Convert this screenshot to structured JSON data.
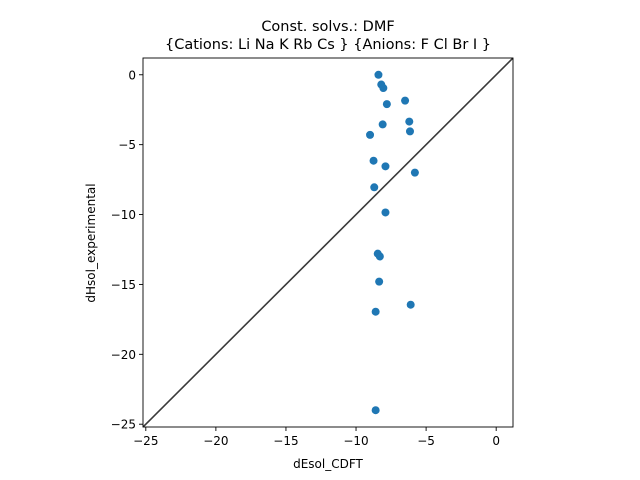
{
  "chart_data": {
    "type": "scatter",
    "title": "Const. solvs.: DMF",
    "subtitle": "{Cations: Li Na K Rb Cs } {Anions: F Cl Br I }",
    "xlabel": "dEsol_CDFT",
    "ylabel": "dHsol_experimental",
    "xlim": [
      -25.2,
      1.2
    ],
    "ylim": [
      -25.2,
      1.2
    ],
    "xticks": [
      -25,
      -20,
      -15,
      -10,
      -5,
      0
    ],
    "yticks": [
      0,
      -5,
      -10,
      -15,
      -20,
      -25
    ],
    "xtick_labels": [
      "−25",
      "−20",
      "−15",
      "−10",
      "−5",
      "0"
    ],
    "ytick_labels": [
      "0",
      "−5",
      "−10",
      "−15",
      "−20",
      "−25"
    ],
    "grid": false,
    "diagonal_line": {
      "from": [
        -25.2,
        -25.2
      ],
      "to": [
        1.2,
        1.2
      ],
      "color": "#3a3a3a"
    },
    "marker_color": "#1f77b4",
    "points": [
      {
        "x": -8.4,
        "y": 0.0
      },
      {
        "x": -8.2,
        "y": -0.7
      },
      {
        "x": -8.05,
        "y": -0.95
      },
      {
        "x": -7.8,
        "y": -2.1
      },
      {
        "x": -6.5,
        "y": -1.85
      },
      {
        "x": -6.2,
        "y": -3.35
      },
      {
        "x": -6.15,
        "y": -4.05
      },
      {
        "x": -8.1,
        "y": -3.55
      },
      {
        "x": -9.0,
        "y": -4.3
      },
      {
        "x": -8.75,
        "y": -6.15
      },
      {
        "x": -7.9,
        "y": -6.55
      },
      {
        "x": -5.8,
        "y": -7.0
      },
      {
        "x": -8.7,
        "y": -8.05
      },
      {
        "x": -7.9,
        "y": -9.85
      },
      {
        "x": -8.45,
        "y": -12.8
      },
      {
        "x": -8.3,
        "y": -13.0
      },
      {
        "x": -8.35,
        "y": -14.8
      },
      {
        "x": -6.1,
        "y": -16.45
      },
      {
        "x": -8.6,
        "y": -16.95
      },
      {
        "x": -8.6,
        "y": -24.0
      }
    ]
  }
}
